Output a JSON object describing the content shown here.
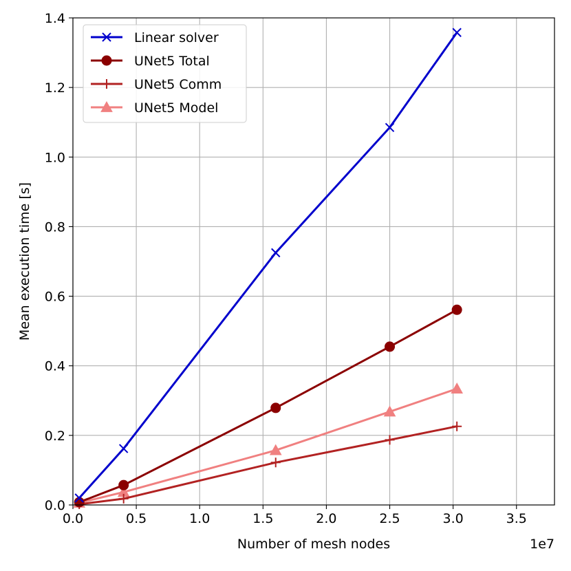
{
  "chart_data": {
    "type": "line",
    "title": "",
    "xlabel": "Number of mesh nodes",
    "ylabel": "Mean execution time [s]",
    "x_offset_label": "1e7",
    "xlim": [
      0,
      38000000
    ],
    "ylim": [
      0,
      1.4
    ],
    "x_ticks": [
      0,
      5000000,
      10000000,
      15000000,
      20000000,
      25000000,
      30000000,
      35000000
    ],
    "x_tick_labels": [
      "0.0",
      "0.5",
      "1.0",
      "1.5",
      "2.0",
      "2.5",
      "3.0",
      "3.5"
    ],
    "y_ticks": [
      0,
      0.2,
      0.4,
      0.6,
      0.8,
      1.0,
      1.2,
      1.4
    ],
    "y_tick_labels": [
      "0.0",
      "0.2",
      "0.4",
      "0.6",
      "0.8",
      "1.0",
      "1.2",
      "1.4"
    ],
    "grid": true,
    "legend_position": "top-left",
    "x": [
      500000,
      4000000,
      16000000,
      25000000,
      30300000
    ],
    "series": [
      {
        "name": "Linear solver",
        "color": "#0000cc",
        "marker": "x",
        "values": [
          0.02,
          0.162,
          0.725,
          1.085,
          1.358
        ]
      },
      {
        "name": "UNet5 Total",
        "color": "#8b0000",
        "marker": "circle",
        "values": [
          0.008,
          0.057,
          0.279,
          0.455,
          0.561
        ]
      },
      {
        "name": "UNet5 Comm",
        "color": "#b22222",
        "marker": "plus",
        "values": [
          0.002,
          0.018,
          0.122,
          0.187,
          0.226
        ]
      },
      {
        "name": "UNet5 Model",
        "color": "#f08080",
        "marker": "triangle",
        "values": [
          0.006,
          0.037,
          0.157,
          0.268,
          0.334
        ]
      }
    ]
  }
}
